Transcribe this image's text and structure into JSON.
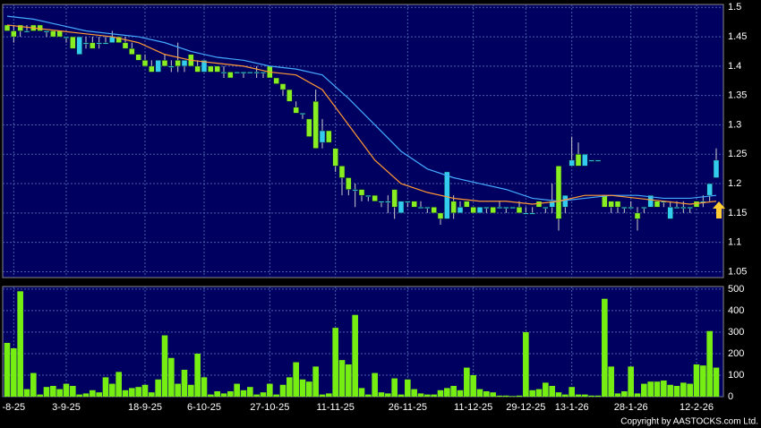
{
  "chart_data": [
    {
      "type": "candlestick",
      "categories": [
        null,
        "-8-25",
        null,
        null,
        null,
        null,
        null,
        null,
        null,
        "3-9-25",
        null,
        null,
        null,
        null,
        null,
        null,
        null,
        null,
        null,
        null,
        null,
        "18-9-25",
        null,
        null,
        null,
        null,
        null,
        null,
        null,
        null,
        "6-10-25",
        null,
        null,
        null,
        null,
        null,
        null,
        null,
        null,
        null,
        "27-10-25",
        null,
        null,
        null,
        null,
        null,
        null,
        null,
        null,
        null,
        "11-11-25",
        null,
        null,
        null,
        null,
        null,
        null,
        null,
        null,
        null,
        null,
        "26-11-25",
        null,
        null,
        null,
        null,
        null,
        null,
        null,
        null,
        null,
        "11-12-25",
        null,
        null,
        null,
        null,
        null,
        null,
        null,
        "29-12-25",
        null,
        null,
        null,
        null,
        null,
        null,
        "13-1-26",
        null,
        null,
        null,
        null,
        null,
        null,
        null,
        null,
        "28-1-26",
        null,
        null,
        null,
        null,
        null,
        null,
        null,
        null,
        null,
        "12-2-26",
        null,
        null,
        null
      ],
      "open": [
        1.47,
        1.46,
        1.47,
        1.46,
        1.47,
        1.47,
        1.46,
        1.46,
        1.46,
        1.45,
        1.45,
        1.42,
        1.44,
        1.44,
        1.44,
        1.44,
        1.44,
        1.45,
        1.44,
        1.43,
        1.42,
        1.41,
        1.4,
        1.39,
        1.41,
        1.4,
        1.41,
        1.4,
        1.42,
        1.4,
        1.39,
        1.4,
        1.4,
        1.39,
        1.39,
        1.39,
        1.39,
        1.39,
        1.39,
        1.39,
        1.4,
        1.38,
        1.37,
        1.36,
        1.33,
        1.32,
        1.31,
        1.34,
        1.27,
        1.29,
        1.26,
        1.23,
        1.21,
        1.19,
        1.19,
        1.18,
        1.18,
        1.17,
        1.17,
        1.19,
        1.15,
        1.17,
        1.17,
        1.16,
        1.16,
        1.16,
        1.15,
        1.14,
        1.17,
        1.15,
        1.17,
        1.16,
        1.15,
        1.16,
        1.16,
        1.16,
        1.16,
        1.16,
        1.16,
        1.15,
        1.15,
        1.17,
        1.16,
        1.16,
        1.23,
        1.16,
        1.23,
        1.25,
        1.23,
        1.24,
        1.24,
        1.18,
        1.17,
        1.17,
        1.16,
        1.16,
        1.15,
        1.16,
        1.16,
        1.17,
        1.17,
        1.14,
        1.16,
        1.16,
        1.16,
        1.17,
        1.17,
        1.18,
        1.21
      ],
      "high": [
        1.47,
        1.47,
        1.47,
        1.47,
        1.47,
        1.47,
        1.46,
        1.46,
        1.46,
        1.45,
        1.45,
        1.45,
        1.45,
        1.45,
        1.45,
        1.45,
        1.46,
        1.45,
        1.45,
        1.44,
        1.42,
        1.42,
        1.41,
        1.41,
        1.42,
        1.41,
        1.44,
        1.41,
        1.42,
        1.41,
        1.41,
        1.4,
        1.4,
        1.4,
        1.39,
        1.39,
        1.39,
        1.39,
        1.4,
        1.39,
        1.4,
        1.38,
        1.37,
        1.36,
        1.34,
        1.32,
        1.31,
        1.36,
        1.31,
        1.29,
        1.26,
        1.23,
        1.21,
        1.2,
        1.19,
        1.18,
        1.18,
        1.17,
        1.18,
        1.19,
        1.17,
        1.17,
        1.17,
        1.17,
        1.16,
        1.16,
        1.15,
        1.22,
        1.18,
        1.17,
        1.17,
        1.16,
        1.16,
        1.16,
        1.16,
        1.17,
        1.16,
        1.16,
        1.17,
        1.16,
        1.16,
        1.17,
        1.16,
        1.2,
        1.23,
        1.18,
        1.28,
        1.27,
        1.25,
        1.24,
        1.24,
        1.18,
        1.17,
        1.17,
        1.16,
        1.17,
        1.16,
        1.16,
        1.18,
        1.17,
        1.17,
        1.17,
        1.17,
        1.17,
        1.16,
        1.17,
        1.18,
        1.2,
        1.26
      ],
      "low": [
        1.46,
        1.44,
        1.45,
        1.46,
        1.46,
        1.46,
        1.45,
        1.45,
        1.45,
        1.44,
        1.43,
        1.42,
        1.43,
        1.43,
        1.43,
        1.44,
        1.44,
        1.44,
        1.43,
        1.42,
        1.41,
        1.4,
        1.39,
        1.39,
        1.4,
        1.39,
        1.39,
        1.39,
        1.4,
        1.39,
        1.39,
        1.39,
        1.39,
        1.38,
        1.38,
        1.39,
        1.38,
        1.39,
        1.38,
        1.38,
        1.38,
        1.37,
        1.35,
        1.34,
        1.32,
        1.31,
        1.28,
        1.26,
        1.26,
        1.27,
        1.22,
        1.18,
        1.18,
        1.16,
        1.17,
        1.17,
        1.17,
        1.16,
        1.15,
        1.14,
        1.15,
        1.16,
        1.16,
        1.16,
        1.15,
        1.15,
        1.13,
        1.14,
        1.14,
        1.15,
        1.16,
        1.15,
        1.15,
        1.15,
        1.15,
        1.16,
        1.15,
        1.16,
        1.15,
        1.15,
        1.15,
        1.16,
        1.15,
        1.15,
        1.12,
        1.15,
        1.23,
        1.23,
        1.23,
        1.24,
        1.24,
        1.16,
        1.15,
        1.15,
        1.15,
        1.16,
        1.12,
        1.15,
        1.16,
        1.16,
        1.16,
        1.14,
        1.16,
        1.15,
        1.15,
        1.16,
        1.16,
        1.17,
        1.21
      ],
      "close": [
        1.46,
        1.45,
        1.46,
        1.46,
        1.46,
        1.46,
        1.46,
        1.45,
        1.45,
        1.45,
        1.43,
        1.45,
        1.44,
        1.43,
        1.44,
        1.44,
        1.45,
        1.44,
        1.43,
        1.42,
        1.41,
        1.4,
        1.39,
        1.41,
        1.4,
        1.4,
        1.4,
        1.41,
        1.4,
        1.39,
        1.41,
        1.39,
        1.39,
        1.39,
        1.38,
        1.39,
        1.39,
        1.39,
        1.39,
        1.39,
        1.38,
        1.37,
        1.36,
        1.34,
        1.32,
        1.32,
        1.28,
        1.26,
        1.29,
        1.27,
        1.23,
        1.21,
        1.19,
        1.19,
        1.18,
        1.18,
        1.17,
        1.17,
        1.17,
        1.16,
        1.17,
        1.17,
        1.16,
        1.16,
        1.16,
        1.15,
        1.14,
        1.22,
        1.15,
        1.16,
        1.16,
        1.15,
        1.16,
        1.16,
        1.15,
        1.16,
        1.16,
        1.16,
        1.15,
        1.15,
        1.15,
        1.16,
        1.16,
        1.17,
        1.14,
        1.18,
        1.24,
        1.23,
        1.25,
        1.24,
        1.24,
        1.16,
        1.16,
        1.16,
        1.16,
        1.16,
        1.14,
        1.16,
        1.18,
        1.16,
        1.17,
        1.16,
        1.16,
        1.16,
        1.16,
        1.16,
        1.17,
        1.2,
        1.24
      ],
      "up_color": "#33ccee",
      "down_color": "#88ee22",
      "series": [
        {
          "color": "#44aaff",
          "x": [
            0,
            4,
            8,
            12,
            16,
            20,
            24,
            28,
            32,
            36,
            40,
            44,
            48,
            52,
            56,
            60,
            64,
            68,
            72,
            76,
            80,
            84,
            88,
            92,
            96,
            100,
            104,
            108
          ],
          "values": [
            1.485,
            1.48,
            1.47,
            1.46,
            1.455,
            1.45,
            1.44,
            1.425,
            1.415,
            1.41,
            1.4,
            1.395,
            1.385,
            1.345,
            1.3,
            1.255,
            1.225,
            1.21,
            1.2,
            1.19,
            1.175,
            1.17,
            1.175,
            1.18,
            1.18,
            1.175,
            1.175,
            1.18
          ]
        },
        {
          "color": "#ff9933",
          "x": [
            0,
            4,
            8,
            12,
            16,
            20,
            24,
            28,
            32,
            36,
            40,
            44,
            48,
            52,
            56,
            60,
            64,
            68,
            72,
            76,
            80,
            84,
            88,
            92,
            96,
            100,
            104,
            108
          ],
          "values": [
            1.47,
            1.465,
            1.46,
            1.455,
            1.45,
            1.44,
            1.42,
            1.41,
            1.405,
            1.4,
            1.39,
            1.385,
            1.36,
            1.3,
            1.24,
            1.2,
            1.185,
            1.175,
            1.17,
            1.17,
            1.165,
            1.17,
            1.18,
            1.18,
            1.175,
            1.17,
            1.165,
            1.17
          ]
        }
      ],
      "ylim": [
        1.04,
        1.505
      ],
      "yticks": [
        1.05,
        1.1,
        1.15,
        1.2,
        1.25,
        1.3,
        1.35,
        1.4,
        1.45,
        1.5
      ],
      "grid": true
    },
    {
      "type": "bar",
      "color": "#77ee11",
      "values": [
        250,
        225,
        490,
        35,
        110,
        10,
        45,
        50,
        35,
        60,
        50,
        10,
        15,
        30,
        20,
        90,
        60,
        115,
        30,
        40,
        45,
        55,
        20,
        80,
        285,
        180,
        60,
        125,
        55,
        200,
        90,
        10,
        25,
        15,
        25,
        60,
        30,
        45,
        10,
        20,
        60,
        10,
        55,
        90,
        160,
        80,
        70,
        140,
        10,
        15,
        320,
        170,
        150,
        380,
        40,
        10,
        110,
        20,
        15,
        85,
        10,
        80,
        35,
        15,
        10,
        10,
        30,
        40,
        50,
        30,
        135,
        100,
        35,
        25,
        20,
        5,
        5,
        3,
        5,
        300,
        30,
        35,
        65,
        50,
        20,
        10,
        45,
        10,
        10,
        5,
        5,
        455,
        140,
        15,
        25,
        140,
        15,
        60,
        70,
        70,
        75,
        55,
        50,
        65,
        60,
        150,
        145,
        305,
        135
      ],
      "ylim": [
        0,
        512
      ],
      "yticks": [
        0,
        100,
        200,
        300,
        400,
        500
      ],
      "grid": true
    }
  ],
  "footer": "Copyright by AASTOCKS.com Ltd."
}
